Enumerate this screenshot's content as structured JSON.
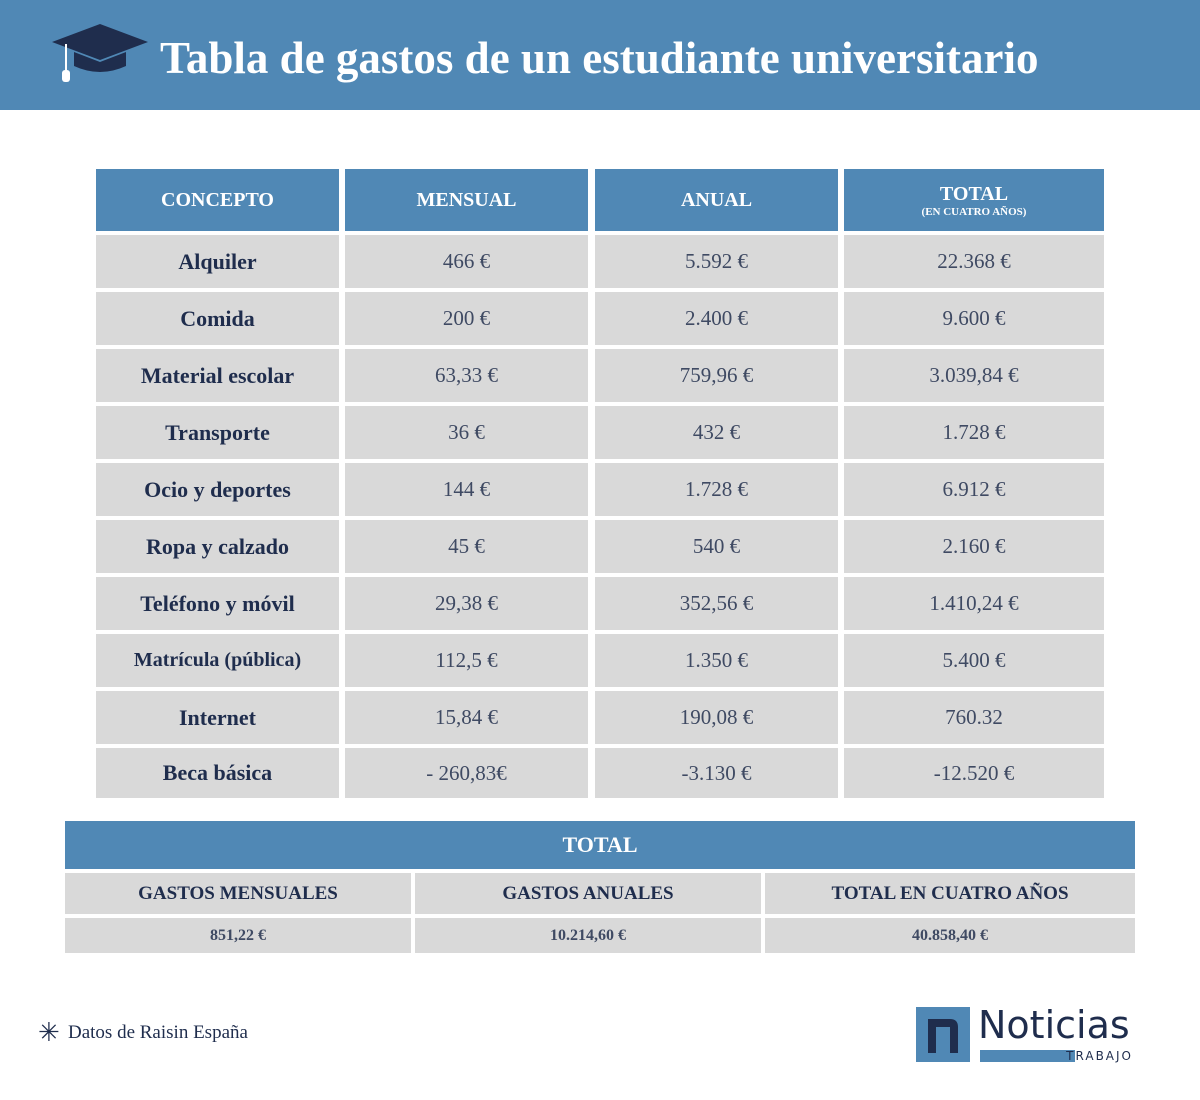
{
  "header": {
    "title": "Tabla de gastos de un estudiante universitario"
  },
  "table": {
    "headers": [
      "CONCEPTO",
      "MENSUAL",
      "ANUAL",
      "TOTAL"
    ],
    "header_note": "(EN CUATRO AÑOS)",
    "rows": [
      [
        "Alquiler",
        "466 €",
        "5.592 €",
        "22.368 €"
      ],
      [
        "Comida",
        "200 €",
        "2.400 €",
        "9.600 €"
      ],
      [
        "Material escolar",
        "63,33 €",
        "759,96 €",
        "3.039,84 €"
      ],
      [
        "Transporte",
        "36 €",
        "432 €",
        "1.728 €"
      ],
      [
        "Ocio y deportes",
        "144 €",
        "1.728 €",
        "6.912 €"
      ],
      [
        "Ropa y calzado",
        "45 €",
        "540 €",
        "2.160 €"
      ],
      [
        "Teléfono y móvil",
        "29,38 €",
        "352,56 €",
        "1.410,24 €"
      ],
      [
        "Matrícula (pública)",
        "112,5 €",
        "1.350 €",
        "5.400 €"
      ],
      [
        "Internet",
        "15,84 €",
        "190,08 €",
        "760.32"
      ],
      [
        "Beca básica",
        "- 260,83€",
        "-3.130 €",
        "-12.520 €"
      ]
    ]
  },
  "totals": {
    "title": "TOTAL",
    "headers": [
      "GASTOS MENSUALES",
      "GASTOS ANUALES",
      "TOTAL EN CUATRO AÑOS"
    ],
    "values": [
      "851,22 €",
      "10.214,60 €",
      "40.858,40 €"
    ]
  },
  "footnote": "Datos de Raisin España",
  "logo": {
    "name": "Noticias",
    "sub": "TRABAJO"
  }
}
